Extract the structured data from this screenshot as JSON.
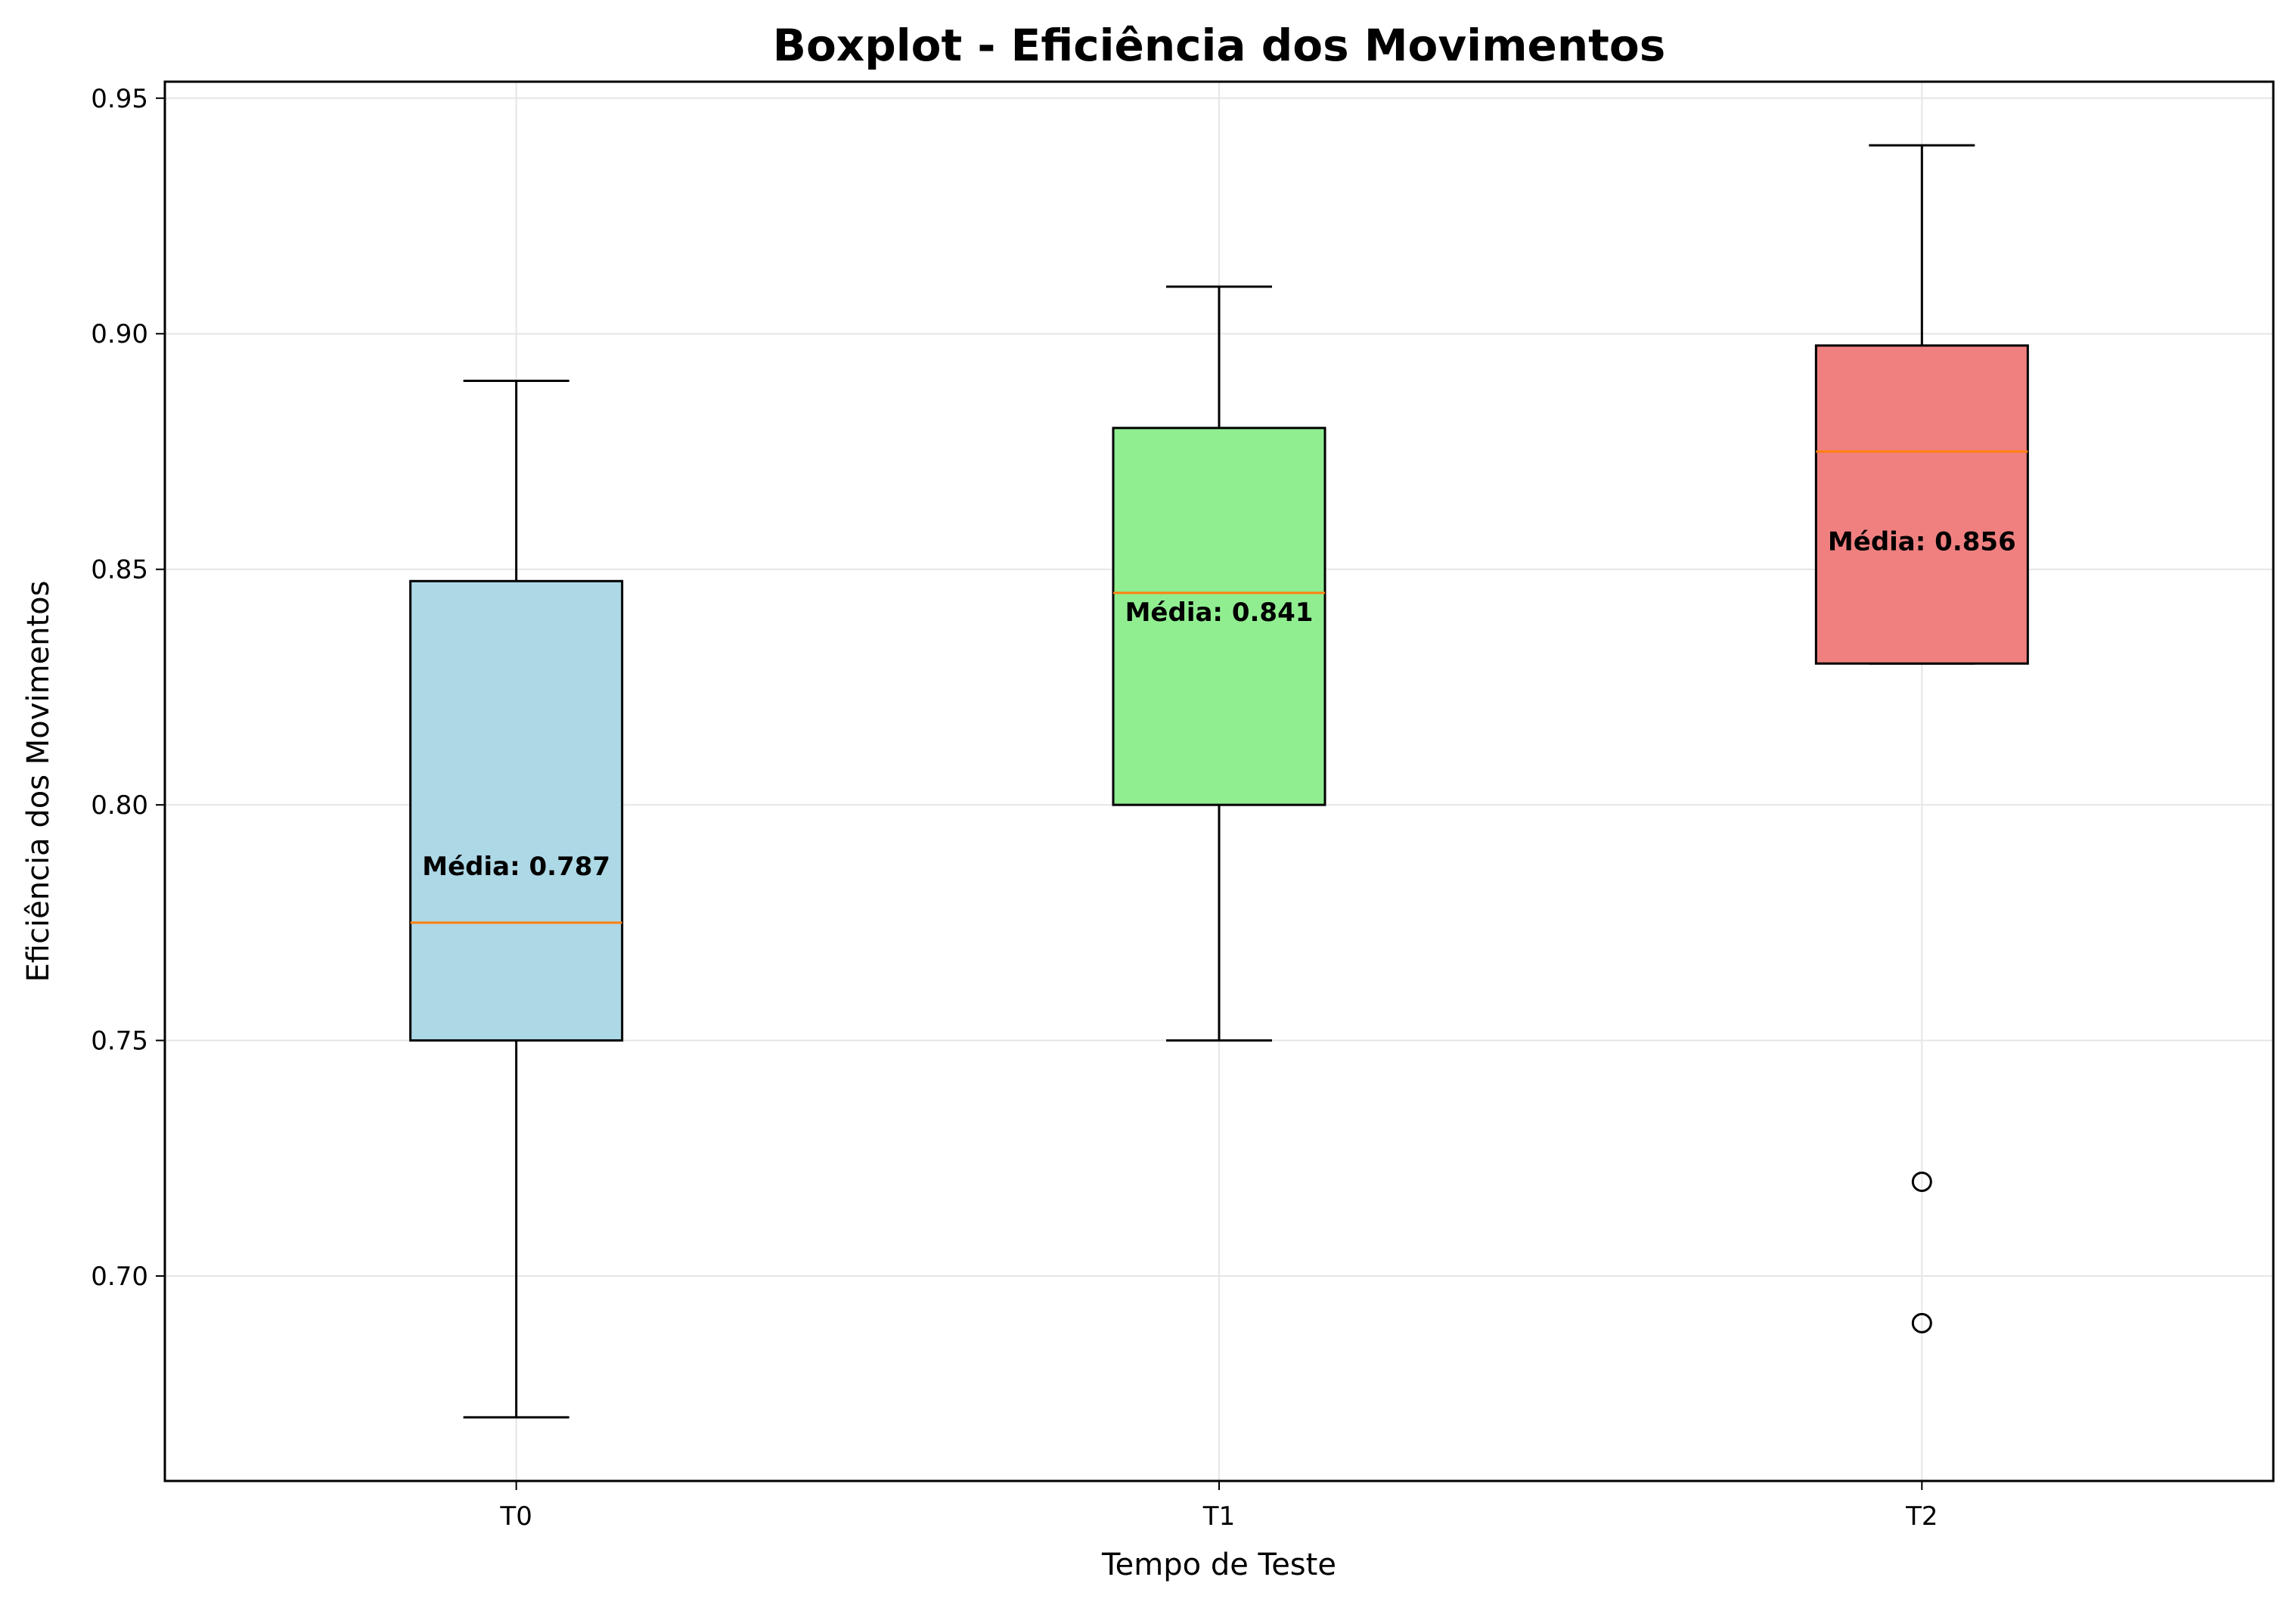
{
  "chart_data": {
    "type": "boxplot",
    "title": "Boxplot - Eficiência dos Movimentos",
    "xlabel": "Tempo de Teste",
    "ylabel": "Eficiência dos Movimentos",
    "ylim": [
      0.6565,
      0.9535
    ],
    "yticks": [
      "0.70",
      "0.75",
      "0.80",
      "0.85",
      "0.90",
      "0.95"
    ],
    "ytick_values": [
      0.7,
      0.75,
      0.8,
      0.85,
      0.9,
      0.95
    ],
    "grid": true,
    "categories": [
      "T0",
      "T1",
      "T2"
    ],
    "boxes": [
      {
        "category": "T0",
        "whisker_low": 0.67,
        "q1": 0.75,
        "median": 0.775,
        "q3": 0.8475,
        "whisker_high": 0.89,
        "mean": 0.787,
        "mean_label": "Média: 0.787",
        "outliers": [],
        "color": "#add8e6"
      },
      {
        "category": "T1",
        "whisker_low": 0.75,
        "q1": 0.8,
        "median": 0.845,
        "q3": 0.88,
        "whisker_high": 0.91,
        "mean": 0.841,
        "mean_label": "Média: 0.841",
        "outliers": [],
        "color": "#90ee90"
      },
      {
        "category": "T2",
        "whisker_low": 0.83,
        "q1": 0.83,
        "median": 0.875,
        "q3": 0.8975,
        "whisker_high": 0.94,
        "mean": 0.856,
        "mean_label": "Média: 0.856",
        "outliers": [
          0.72,
          0.69
        ],
        "color": "#f08080"
      }
    ],
    "median_color": "#ff7f0e"
  }
}
